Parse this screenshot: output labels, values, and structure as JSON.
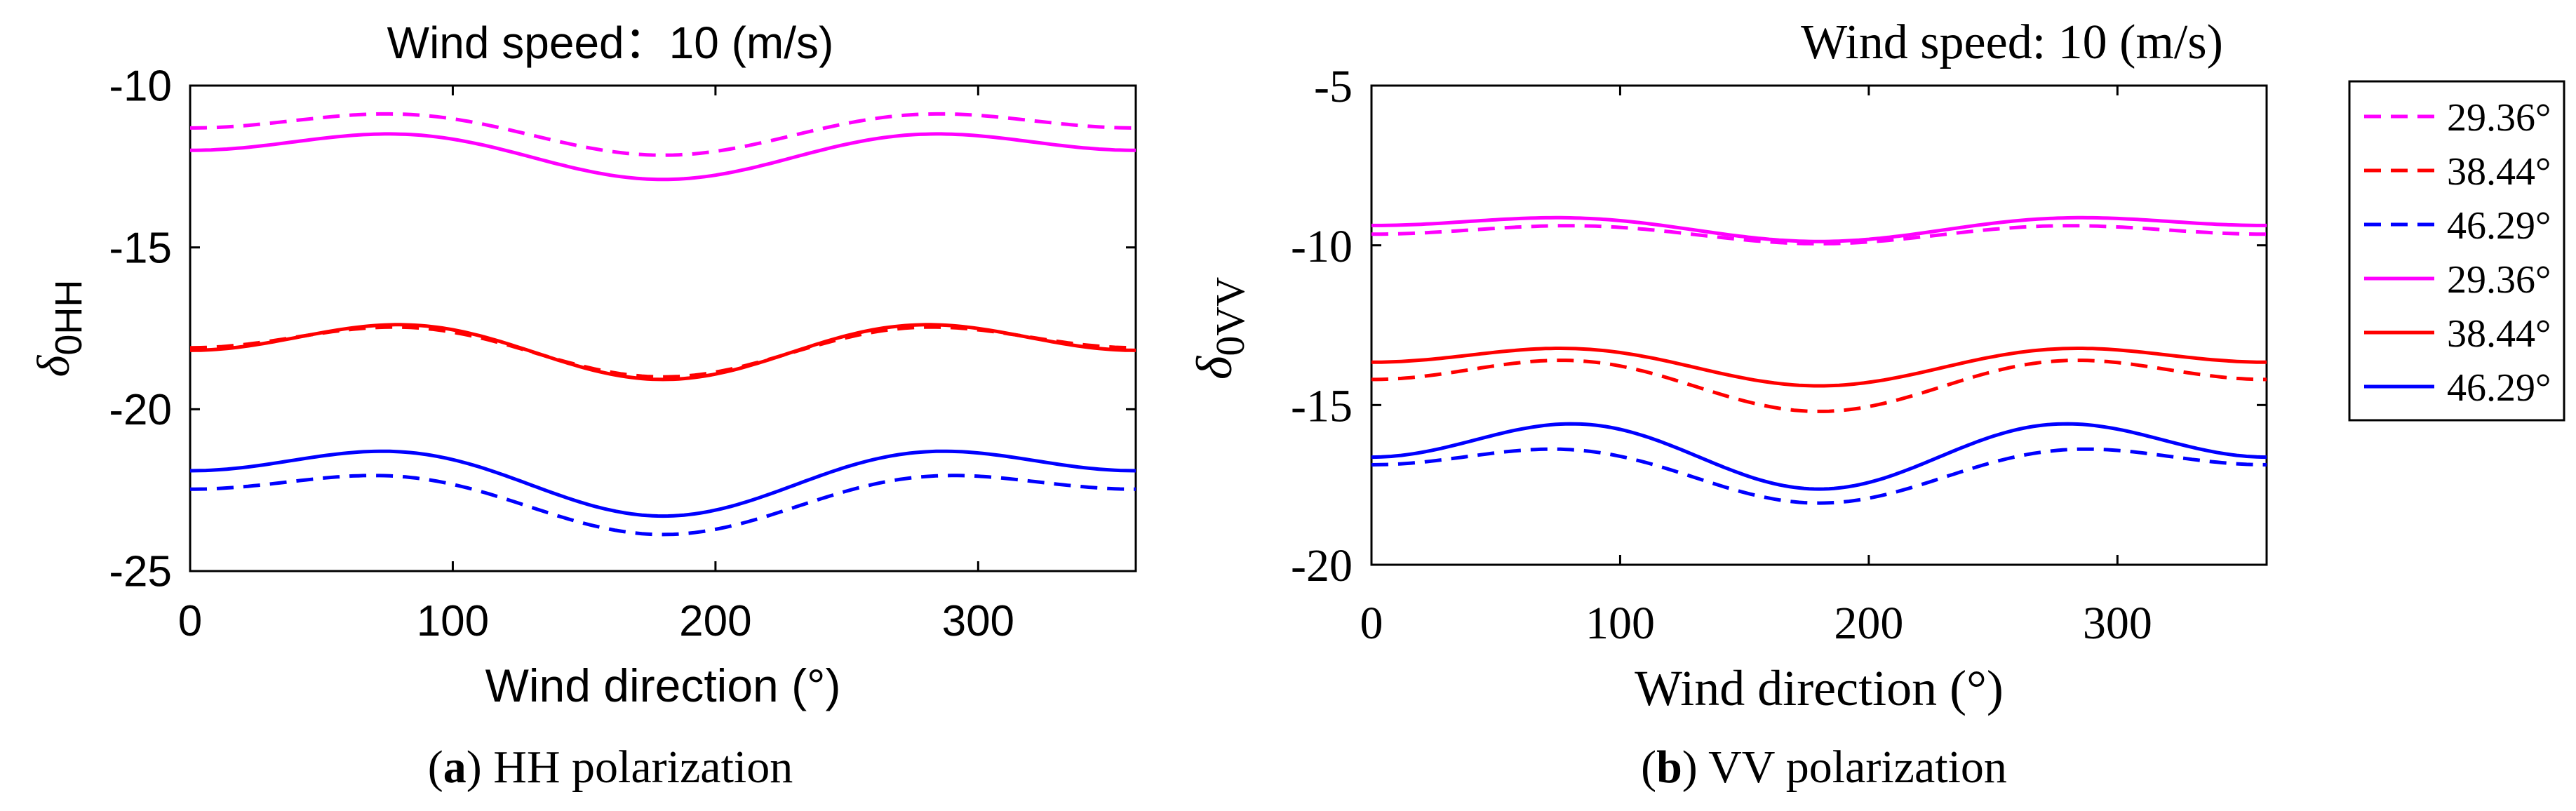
{
  "figure": {
    "panel_a_caption_letter": "a",
    "panel_a_caption_text": " HH polarization",
    "panel_b_caption_letter": "b",
    "panel_b_caption_text": " VV polarization"
  },
  "chart_data": [
    {
      "type": "line",
      "title": "Wind speed：10 (m/s)",
      "xlabel": "Wind direction (°)",
      "ylabel_main": "δ",
      "ylabel_sub": "0HH",
      "xlim": [
        0,
        360
      ],
      "ylim": [
        -25,
        -10
      ],
      "xticks": [
        0,
        100,
        200,
        300
      ],
      "yticks": [
        -10,
        -15,
        -20,
        -25
      ],
      "colors": {
        "magenta": "#ff00ff",
        "red": "#ff0000",
        "blue": "#0000ff"
      },
      "series": [
        {
          "name": "29.36°",
          "style": "dashed",
          "color": "#ff00ff",
          "params": {
            "a0": -11.33,
            "a1": 0.42,
            "a2": -0.4
          }
        },
        {
          "name": "38.44°",
          "style": "dashed",
          "color": "#ff0000",
          "params": {
            "a0": -18.03,
            "a1": 0.45,
            "a2": -0.52
          }
        },
        {
          "name": "46.29°",
          "style": "dashed",
          "color": "#0000ff",
          "params": {
            "a0": -22.67,
            "a1": 0.7,
            "a2": -0.5
          }
        },
        {
          "name": "29.36°",
          "style": "solid",
          "color": "#ff00ff",
          "params": {
            "a0": -12.0,
            "a1": 0.45,
            "a2": -0.45
          }
        },
        {
          "name": "38.44°",
          "style": "solid",
          "color": "#ff0000",
          "params": {
            "a0": -18.03,
            "a1": 0.45,
            "a2": -0.6
          }
        },
        {
          "name": "46.29°",
          "style": "solid",
          "color": "#0000ff",
          "params": {
            "a0": -22.0,
            "a1": 0.7,
            "a2": -0.6
          }
        }
      ]
    },
    {
      "type": "line",
      "title": "Wind speed: 10 (m/s)",
      "xlabel": "Wind direction (°)",
      "ylabel_main": "δ",
      "ylabel_sub": "0VV",
      "xlim": [
        0,
        360
      ],
      "ylim": [
        -20,
        -5
      ],
      "xticks": [
        0,
        100,
        200,
        300
      ],
      "yticks": [
        -5,
        -10,
        -15,
        -20
      ],
      "legend_position": "outside-right",
      "series": [
        {
          "name": "29.36°",
          "style": "dashed",
          "color": "#ff00ff",
          "params": {
            "a0": -9.6,
            "a1": 0.15,
            "a2": -0.2
          }
        },
        {
          "name": "38.44°",
          "style": "dashed",
          "color": "#ff0000",
          "params": {
            "a0": -14.18,
            "a1": 0.5,
            "a2": -0.52
          }
        },
        {
          "name": "46.29°",
          "style": "dashed",
          "color": "#0000ff",
          "params": {
            "a0": -16.97,
            "a1": 0.6,
            "a2": -0.5
          }
        },
        {
          "name": "29.36°",
          "style": "solid",
          "color": "#ff00ff",
          "params": {
            "a0": -9.4,
            "a1": 0.25,
            "a2": -0.23
          }
        },
        {
          "name": "38.44°",
          "style": "solid",
          "color": "#ff0000",
          "params": {
            "a0": -13.65,
            "a1": 0.37,
            "a2": -0.38
          }
        },
        {
          "name": "46.29°",
          "style": "solid",
          "color": "#0000ff",
          "params": {
            "a0": -16.38,
            "a1": 0.5,
            "a2": -0.75
          }
        }
      ]
    }
  ]
}
